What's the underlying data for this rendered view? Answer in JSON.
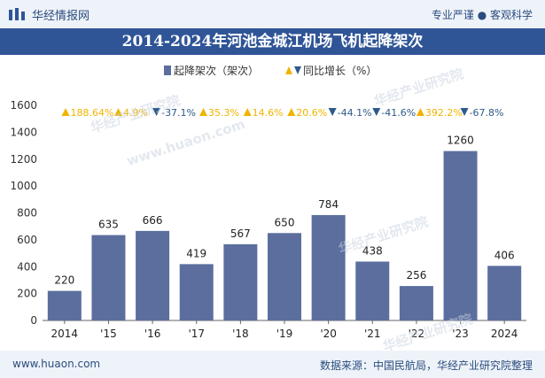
{
  "header": {
    "logo_text": "华经情报网",
    "tagline": "专业严谨 ● 客观科学"
  },
  "title": "2014-2024年河池金城江机场飞机起降架次",
  "footer": {
    "url": "www.huaon.com",
    "source": "数据来源：中国民航局，华经产业研究院整理"
  },
  "watermarks": [
    "华经产业研究院",
    "www.huaon.com"
  ],
  "chart_data": {
    "type": "bar",
    "categories": [
      "2014",
      "'15",
      "'16",
      "'17",
      "'18",
      "'19",
      "'20",
      "'21",
      "'22",
      "'23",
      "2024"
    ],
    "series": [
      {
        "name": "起降架次（架次）",
        "values": [
          220,
          635,
          666,
          419,
          567,
          650,
          784,
          438,
          256,
          1260,
          406
        ],
        "color": "#5b6e9e"
      }
    ],
    "growth": {
      "name": "同比增长（%）",
      "values": [
        "188.64%",
        "4.9%",
        "-37.1%",
        "35.3%",
        "14.6%",
        "20.6%",
        "-44.1%",
        "-41.6%",
        "392.2%",
        "-67.8%"
      ],
      "up_color": "#f0b400",
      "down_color": "#2e5a8a"
    },
    "ylim": [
      0,
      1600
    ],
    "yticks": [
      0,
      200,
      400,
      600,
      800,
      1000,
      1200,
      1400,
      1600
    ],
    "legend_placement": "top-center",
    "grid": false
  }
}
